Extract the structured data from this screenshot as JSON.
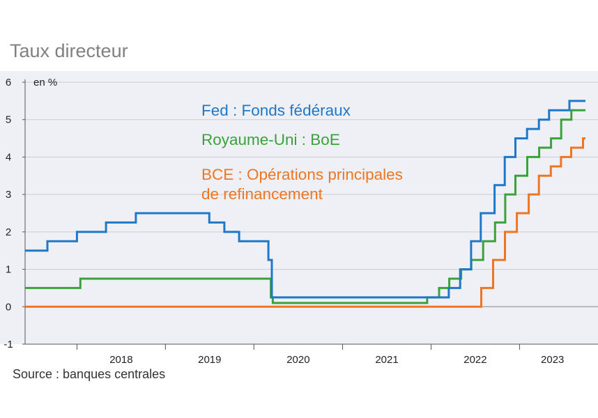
{
  "title": "Taux directeur",
  "source": "Source : banques centrales",
  "chart_data": {
    "type": "line",
    "step": true,
    "ylabel": "en %",
    "ylim": [
      -1,
      6
    ],
    "xlim": [
      "2017-06-01",
      "2023-09-30"
    ],
    "yticks": [
      "6",
      "5",
      "4",
      "3",
      "2",
      "1",
      "0",
      "-1"
    ],
    "xticks": [
      "2018",
      "2019",
      "2020",
      "2021",
      "2022",
      "2023"
    ],
    "grid": true,
    "legend_position": "top-center",
    "series": [
      {
        "name": "Fed : Fonds fédéraux",
        "color": "#1f77c8",
        "points": [
          [
            "2017-06-01",
            1.5
          ],
          [
            "2017-09-01",
            1.75
          ],
          [
            "2018-01-01",
            2.0
          ],
          [
            "2018-05-01",
            2.25
          ],
          [
            "2018-09-01",
            2.5
          ],
          [
            "2019-07-01",
            2.25
          ],
          [
            "2019-09-01",
            2.0
          ],
          [
            "2019-11-01",
            1.75
          ],
          [
            "2020-03-01",
            1.25
          ],
          [
            "2020-03-15",
            0.25
          ],
          [
            "2022-03-15",
            0.5
          ],
          [
            "2022-05-01",
            1.0
          ],
          [
            "2022-06-15",
            1.75
          ],
          [
            "2022-07-25",
            2.5
          ],
          [
            "2022-09-20",
            3.25
          ],
          [
            "2022-11-01",
            4.0
          ],
          [
            "2022-12-15",
            4.5
          ],
          [
            "2023-02-01",
            4.75
          ],
          [
            "2023-03-22",
            5.0
          ],
          [
            "2023-05-03",
            5.25
          ],
          [
            "2023-07-26",
            5.5
          ],
          [
            "2023-09-30",
            5.5
          ]
        ]
      },
      {
        "name": "Royaume-Uni : BoE",
        "color": "#3aa23a",
        "points": [
          [
            "2017-06-01",
            0.5
          ],
          [
            "2018-01-15",
            0.75
          ],
          [
            "2020-03-11",
            0.25
          ],
          [
            "2020-03-19",
            0.1
          ],
          [
            "2021-12-16",
            0.25
          ],
          [
            "2022-02-03",
            0.5
          ],
          [
            "2022-03-17",
            0.75
          ],
          [
            "2022-05-05",
            1.0
          ],
          [
            "2022-06-16",
            1.25
          ],
          [
            "2022-08-04",
            1.75
          ],
          [
            "2022-09-22",
            2.25
          ],
          [
            "2022-11-03",
            3.0
          ],
          [
            "2022-12-15",
            3.5
          ],
          [
            "2023-02-02",
            4.0
          ],
          [
            "2023-03-23",
            4.25
          ],
          [
            "2023-05-11",
            4.5
          ],
          [
            "2023-06-22",
            5.0
          ],
          [
            "2023-08-03",
            5.25
          ],
          [
            "2023-09-30",
            5.25
          ]
        ]
      },
      {
        "name": "BCE : Opérations principales de refinancement",
        "legend_lines": [
          "BCE : Opérations principales",
          "de refinancement"
        ],
        "color": "#ee7623",
        "points": [
          [
            "2017-06-01",
            0.0
          ],
          [
            "2022-07-27",
            0.5
          ],
          [
            "2022-09-14",
            1.25
          ],
          [
            "2022-11-02",
            2.0
          ],
          [
            "2022-12-21",
            2.5
          ],
          [
            "2023-02-08",
            3.0
          ],
          [
            "2023-03-22",
            3.5
          ],
          [
            "2023-05-10",
            3.75
          ],
          [
            "2023-06-21",
            4.0
          ],
          [
            "2023-08-02",
            4.25
          ],
          [
            "2023-09-20",
            4.5
          ],
          [
            "2023-09-30",
            4.5
          ]
        ]
      }
    ]
  }
}
